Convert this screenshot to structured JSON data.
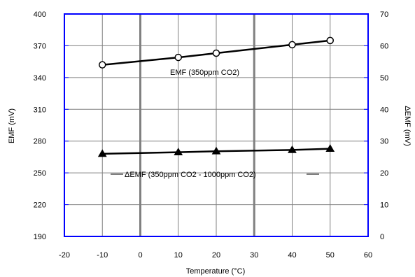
{
  "chart_data": {
    "type": "line",
    "xlabel": "Temperature (°C)",
    "ylabel": "EMF (mV)",
    "y2label": "ΔEMF (mV)",
    "xlim": [
      -20,
      60
    ],
    "ylim": [
      190,
      400
    ],
    "y2lim": [
      0,
      70
    ],
    "xticks": [
      -20,
      -10,
      0,
      10,
      20,
      30,
      40,
      50,
      60
    ],
    "yticks": [
      190,
      220,
      250,
      280,
      310,
      340,
      370,
      400
    ],
    "y2ticks": [
      0,
      10,
      20,
      30,
      40,
      50,
      60,
      70
    ],
    "grid": true,
    "series": [
      {
        "name": "EMF (350ppm CO2)",
        "axis": "left",
        "marker": "circle",
        "x": [
          -10,
          10,
          20,
          40,
          50
        ],
        "y": [
          352,
          359,
          363,
          371,
          375
        ]
      },
      {
        "name": "ΔEMF (350ppm CO2 - 1000ppm CO2)",
        "axis": "right",
        "marker": "triangle",
        "x": [
          -10,
          10,
          20,
          40,
          50
        ],
        "y": [
          26,
          26.5,
          26.8,
          27.2,
          27.6
        ]
      }
    ],
    "colors": {
      "frame": "#0000ff",
      "grid": "#808080",
      "series": "#000000"
    }
  }
}
